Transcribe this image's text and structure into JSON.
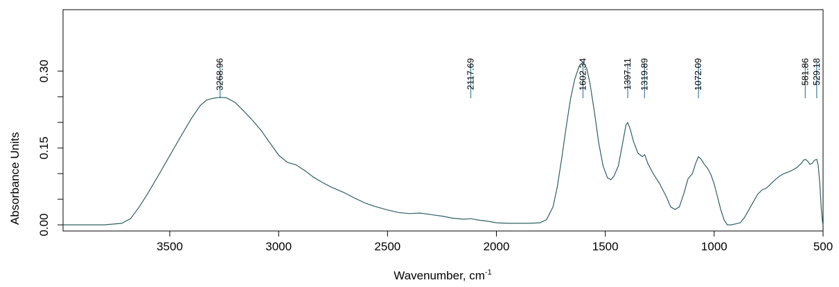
{
  "chart_data": {
    "type": "line",
    "xlabel": "Wavenumber, cm",
    "xlabel_superscript": "-1",
    "ylabel": "Absorbance Units",
    "x_reversed": true,
    "xlim": [
      3990,
      500
    ],
    "ylim": [
      -0.012,
      0.42
    ],
    "xticks": [
      3500,
      3000,
      2500,
      2000,
      1500,
      1000,
      500
    ],
    "yticks_labeled": [
      "0.00",
      "0.15",
      "0.30"
    ],
    "yticks_all": [
      0.0,
      0.05,
      0.1,
      0.15,
      0.2,
      0.25,
      0.3
    ],
    "grid": false,
    "series": [
      {
        "color": "#2e5f5f",
        "points": [
          [
            3990,
            0.0
          ],
          [
            3800,
            0.0
          ],
          [
            3720,
            0.003
          ],
          [
            3680,
            0.012
          ],
          [
            3640,
            0.035
          ],
          [
            3600,
            0.062
          ],
          [
            3550,
            0.098
          ],
          [
            3500,
            0.135
          ],
          [
            3450,
            0.172
          ],
          [
            3400,
            0.208
          ],
          [
            3360,
            0.233
          ],
          [
            3330,
            0.244
          ],
          [
            3300,
            0.247
          ],
          [
            3270,
            0.249
          ],
          [
            3240,
            0.248
          ],
          [
            3200,
            0.239
          ],
          [
            3160,
            0.222
          ],
          [
            3120,
            0.204
          ],
          [
            3080,
            0.184
          ],
          [
            3040,
            0.16
          ],
          [
            3000,
            0.136
          ],
          [
            2960,
            0.122
          ],
          [
            2920,
            0.117
          ],
          [
            2880,
            0.106
          ],
          [
            2840,
            0.093
          ],
          [
            2800,
            0.083
          ],
          [
            2760,
            0.074
          ],
          [
            2700,
            0.063
          ],
          [
            2650,
            0.052
          ],
          [
            2600,
            0.042
          ],
          [
            2550,
            0.035
          ],
          [
            2500,
            0.029
          ],
          [
            2450,
            0.024
          ],
          [
            2400,
            0.022
          ],
          [
            2350,
            0.023
          ],
          [
            2300,
            0.02
          ],
          [
            2250,
            0.017
          ],
          [
            2200,
            0.013
          ],
          [
            2150,
            0.011
          ],
          [
            2117,
            0.012
          ],
          [
            2080,
            0.009
          ],
          [
            2040,
            0.007
          ],
          [
            2000,
            0.004
          ],
          [
            1950,
            0.003
          ],
          [
            1900,
            0.003
          ],
          [
            1850,
            0.003
          ],
          [
            1800,
            0.004
          ],
          [
            1770,
            0.01
          ],
          [
            1740,
            0.035
          ],
          [
            1720,
            0.075
          ],
          [
            1700,
            0.13
          ],
          [
            1680,
            0.19
          ],
          [
            1660,
            0.245
          ],
          [
            1640,
            0.285
          ],
          [
            1620,
            0.31
          ],
          [
            1602,
            0.318
          ],
          [
            1585,
            0.305
          ],
          [
            1570,
            0.275
          ],
          [
            1550,
            0.22
          ],
          [
            1530,
            0.16
          ],
          [
            1510,
            0.115
          ],
          [
            1490,
            0.092
          ],
          [
            1475,
            0.088
          ],
          [
            1460,
            0.095
          ],
          [
            1440,
            0.115
          ],
          [
            1420,
            0.16
          ],
          [
            1405,
            0.195
          ],
          [
            1397,
            0.2
          ],
          [
            1385,
            0.186
          ],
          [
            1370,
            0.162
          ],
          [
            1350,
            0.14
          ],
          [
            1330,
            0.133
          ],
          [
            1319,
            0.137
          ],
          [
            1305,
            0.12
          ],
          [
            1280,
            0.1
          ],
          [
            1250,
            0.08
          ],
          [
            1220,
            0.055
          ],
          [
            1200,
            0.035
          ],
          [
            1180,
            0.03
          ],
          [
            1160,
            0.035
          ],
          [
            1140,
            0.06
          ],
          [
            1120,
            0.09
          ],
          [
            1100,
            0.1
          ],
          [
            1085,
            0.12
          ],
          [
            1072,
            0.133
          ],
          [
            1060,
            0.128
          ],
          [
            1045,
            0.118
          ],
          [
            1030,
            0.11
          ],
          [
            1015,
            0.098
          ],
          [
            1000,
            0.08
          ],
          [
            985,
            0.055
          ],
          [
            970,
            0.03
          ],
          [
            955,
            0.01
          ],
          [
            940,
            0.0
          ],
          [
            920,
            0.0
          ],
          [
            900,
            0.002
          ],
          [
            880,
            0.004
          ],
          [
            860,
            0.015
          ],
          [
            840,
            0.03
          ],
          [
            820,
            0.045
          ],
          [
            800,
            0.06
          ],
          [
            780,
            0.068
          ],
          [
            760,
            0.072
          ],
          [
            740,
            0.08
          ],
          [
            720,
            0.088
          ],
          [
            700,
            0.095
          ],
          [
            680,
            0.1
          ],
          [
            660,
            0.103
          ],
          [
            640,
            0.107
          ],
          [
            620,
            0.112
          ],
          [
            600,
            0.12
          ],
          [
            590,
            0.126
          ],
          [
            581,
            0.128
          ],
          [
            570,
            0.124
          ],
          [
            560,
            0.118
          ],
          [
            550,
            0.12
          ],
          [
            540,
            0.126
          ],
          [
            529,
            0.128
          ],
          [
            522,
            0.115
          ],
          [
            515,
            0.08
          ],
          [
            508,
            0.03
          ],
          [
            502,
            0.003
          ],
          [
            500,
            0.0
          ]
        ]
      }
    ],
    "peak_annotations": [
      {
        "x": 3268.96,
        "label": "3268.96"
      },
      {
        "x": 2117.69,
        "label": "2117.69"
      },
      {
        "x": 1602.34,
        "label": "1602.34"
      },
      {
        "x": 1397.11,
        "label": "1397.11"
      },
      {
        "x": 1319.89,
        "label": "1319.89"
      },
      {
        "x": 1072.09,
        "label": "1072.09"
      },
      {
        "x": 581.86,
        "label": "581.86"
      },
      {
        "x": 529.18,
        "label": "529.18"
      }
    ],
    "colors": {
      "line": "#2e5f5f",
      "peak_marker": "#3a7fa0",
      "axis": "#000000"
    }
  }
}
